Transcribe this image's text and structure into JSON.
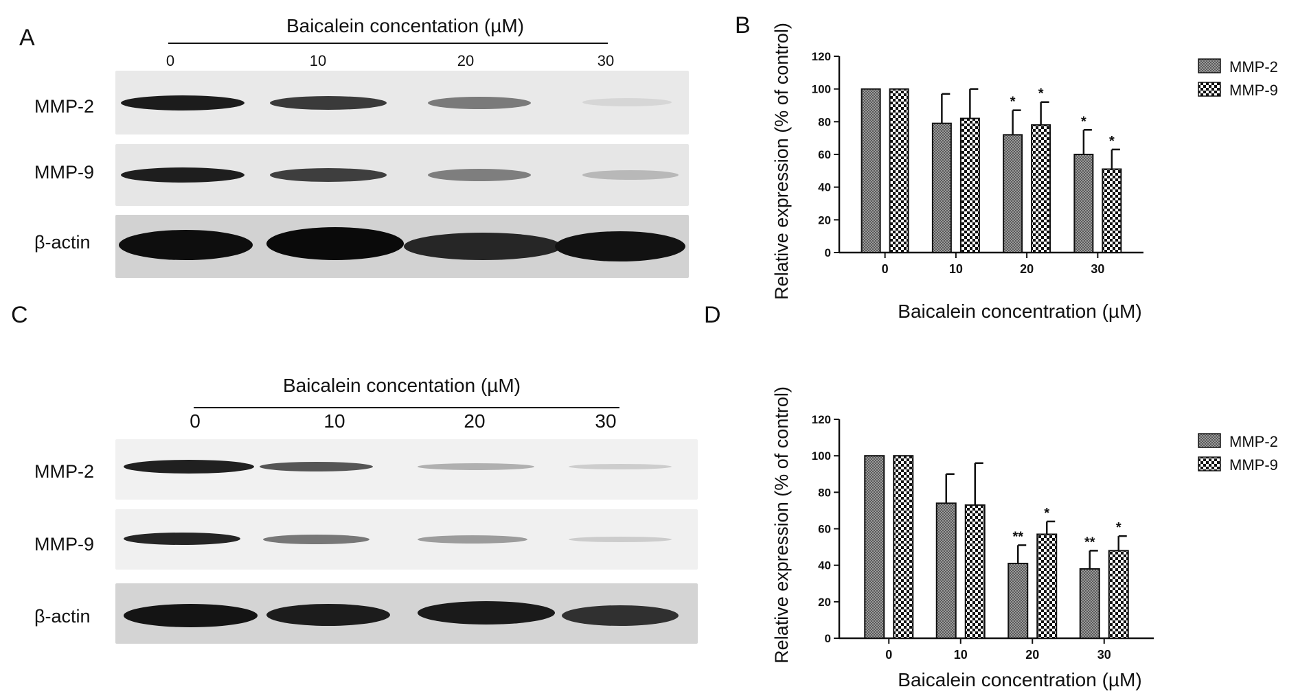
{
  "panels": {
    "A": {
      "letter": "A",
      "title": "Baicalein concentation (µM)",
      "lanes": [
        "0",
        "10",
        "20",
        "30"
      ],
      "rows": [
        {
          "label": "MMP-2",
          "intensities": [
            1.0,
            0.72,
            0.45,
            0.08
          ]
        },
        {
          "label": "MMP-9",
          "intensities": [
            1.0,
            0.75,
            0.45,
            0.2
          ]
        },
        {
          "label": "β-actin",
          "intensities": [
            1.0,
            1.0,
            0.85,
            0.95
          ]
        }
      ]
    },
    "C": {
      "letter": "C",
      "title": "Baicalein concentation (µM)",
      "lanes": [
        "0",
        "10",
        "20",
        "30"
      ],
      "rows": [
        {
          "label": "MMP-2",
          "intensities": [
            1.0,
            0.6,
            0.25,
            0.15
          ]
        },
        {
          "label": "MMP-9",
          "intensities": [
            1.0,
            0.55,
            0.4,
            0.15
          ]
        },
        {
          "label": "β-actin",
          "intensities": [
            1.0,
            0.9,
            0.9,
            0.8
          ]
        }
      ]
    },
    "B": {
      "letter": "B"
    },
    "D": {
      "letter": "D"
    }
  },
  "chart_data": [
    {
      "panel": "B",
      "type": "bar",
      "categories": [
        "0",
        "10",
        "20",
        "30"
      ],
      "series": [
        {
          "name": "MMP-2",
          "values": [
            100,
            79,
            72,
            60
          ],
          "errors": [
            0,
            18,
            15,
            15
          ],
          "sig": [
            "",
            "",
            "*",
            "*"
          ]
        },
        {
          "name": "MMP-9",
          "values": [
            100,
            82,
            78,
            51
          ],
          "errors": [
            0,
            18,
            14,
            12
          ],
          "sig": [
            "",
            "",
            "*",
            "*"
          ]
        }
      ],
      "xlabel": "Baicalein concentration (µM)",
      "ylabel": "Relative expression (% of control)",
      "ylim": [
        0,
        120
      ],
      "yticks": [
        "0",
        "20",
        "40",
        "60",
        "80",
        "100",
        "120"
      ],
      "legend": "top-right",
      "colors": {
        "MMP-2": "#8a8a8a",
        "MMP-9": "#2a2a2a"
      }
    },
    {
      "panel": "D",
      "type": "bar",
      "categories": [
        "0",
        "10",
        "20",
        "30"
      ],
      "series": [
        {
          "name": "MMP-2",
          "values": [
            100,
            74,
            41,
            38
          ],
          "errors": [
            0,
            16,
            10,
            10
          ],
          "sig": [
            "",
            "",
            "**",
            "**"
          ]
        },
        {
          "name": "MMP-9",
          "values": [
            100,
            73,
            57,
            48
          ],
          "errors": [
            0,
            23,
            7,
            8
          ],
          "sig": [
            "",
            "",
            "*",
            "*"
          ]
        }
      ],
      "xlabel": "Baicalein concentration (µM)",
      "ylabel": "Relative expression (% of control)",
      "ylim": [
        0,
        120
      ],
      "yticks": [
        "0",
        "20",
        "40",
        "60",
        "80",
        "100",
        "120"
      ],
      "legend": "top-right",
      "colors": {
        "MMP-2": "#8a8a8a",
        "MMP-9": "#2a2a2a"
      }
    }
  ]
}
